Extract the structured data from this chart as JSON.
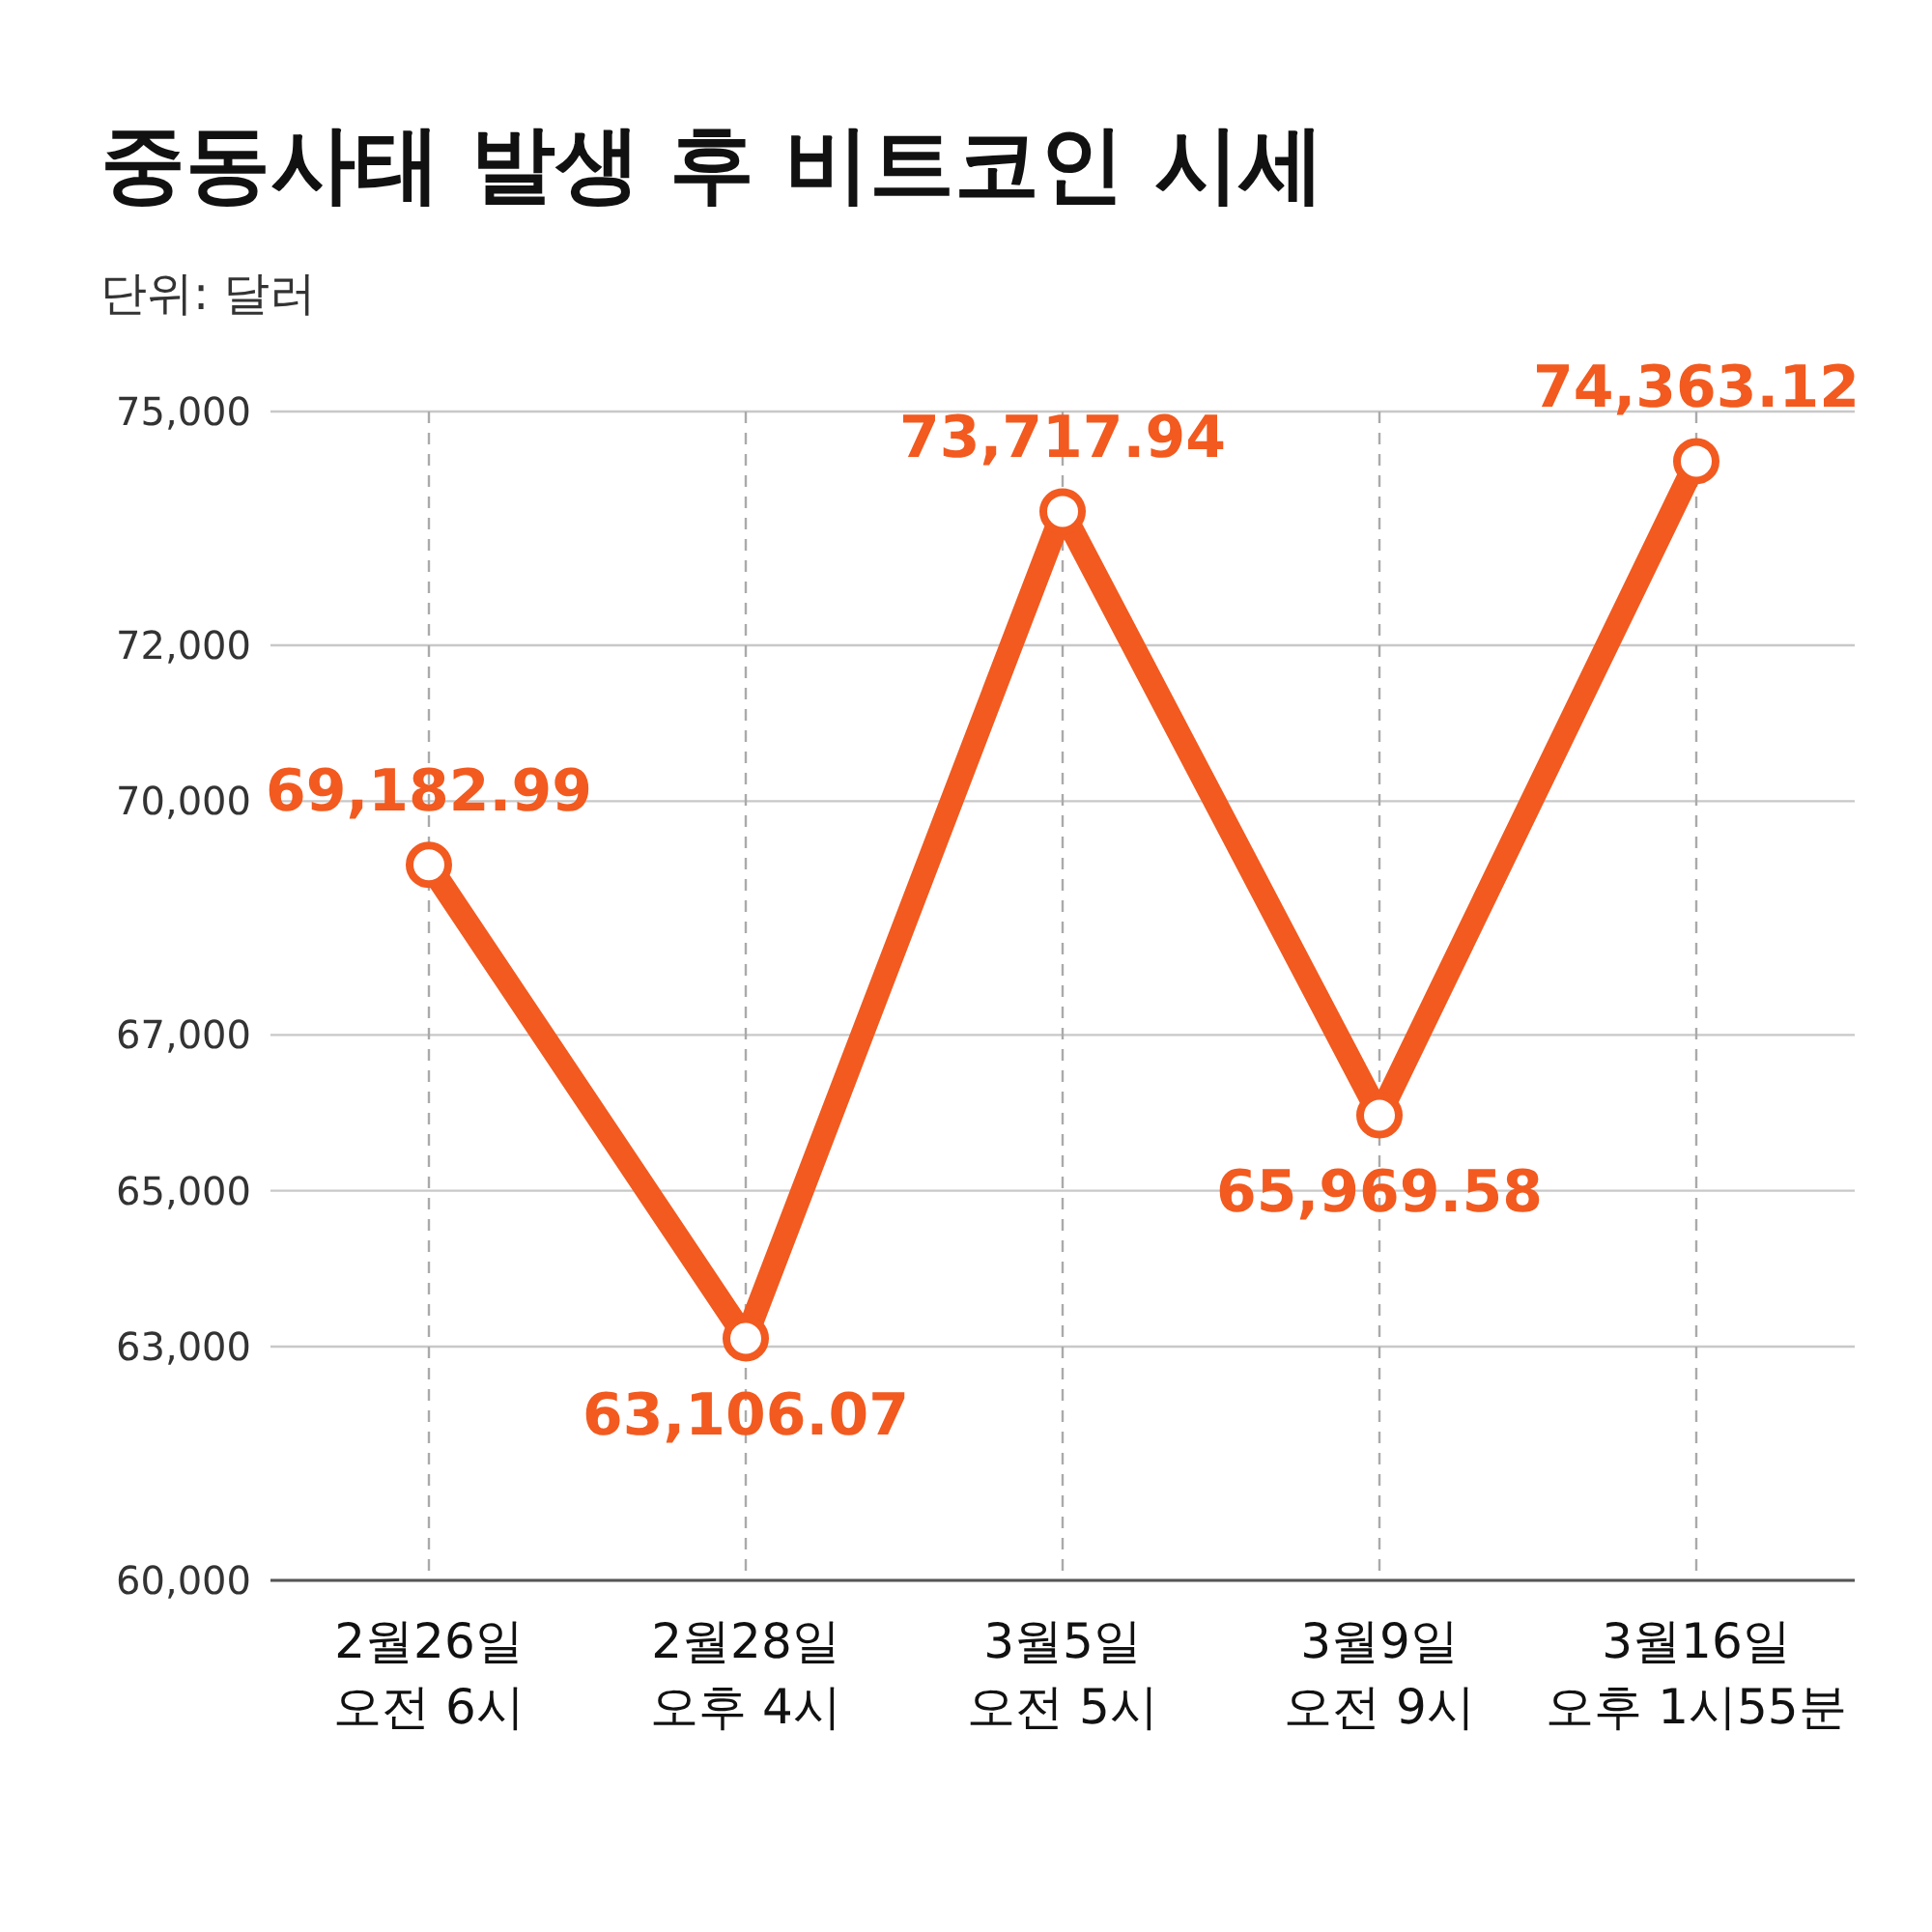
{
  "chart_data": {
    "type": "line",
    "title": "중동사태 발생 후 비트코인 시세",
    "subtitle": "단위: 달러",
    "categories": [
      "2월26일\n오전 6시",
      "2월28일\n오후 4시",
      "3월5일\n오전 5시",
      "3월9일\n오전 9시",
      "3월16일\n오후 1시55분"
    ],
    "series": [
      {
        "color": "#f25a1f",
        "values": [
          69182.99,
          63106.07,
          73717.94,
          65969.58,
          74363.12
        ],
        "value_labels": [
          "69,182.99",
          "63,106.07",
          "73,717.94",
          "65,969.58",
          "74,363.12"
        ]
      }
    ],
    "ylim": [
      60000,
      75000
    ],
    "yticks": [
      {
        "value": 60000,
        "label": "60,000"
      },
      {
        "value": 63000,
        "label": "63,000"
      },
      {
        "value": 65000,
        "label": "65,000"
      },
      {
        "value": 67000,
        "label": "67,000"
      },
      {
        "value": 70000,
        "label": "70,000"
      },
      {
        "value": 72000,
        "label": "72,000"
      },
      {
        "value": 75000,
        "label": "75,000"
      }
    ],
    "grid": true,
    "marker": "circle",
    "line_style": "solid"
  }
}
